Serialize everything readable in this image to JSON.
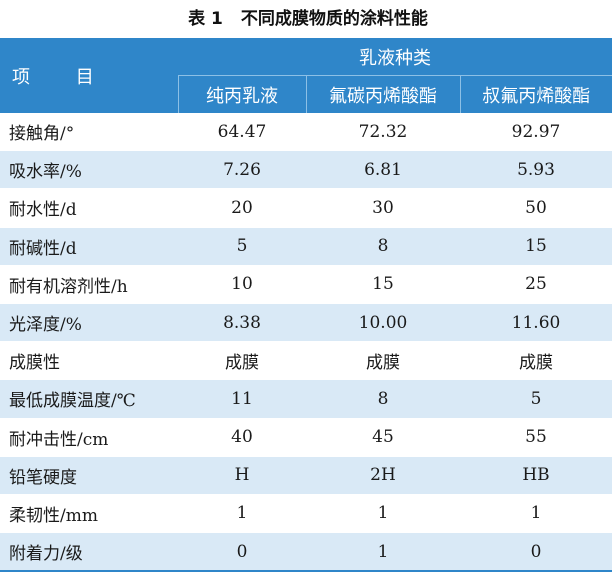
{
  "table": {
    "caption_number": "表 1",
    "caption_title": "不同成膜物质的涂料性能",
    "header": {
      "item_label": "项 目",
      "group_label": "乳液种类",
      "columns": [
        "纯丙乳液",
        "氟碳丙烯酸酯",
        "叔氟丙烯酸酯"
      ]
    },
    "rows": [
      {
        "label": "接触角/°",
        "values": [
          "64.47",
          "72.32",
          "92.97"
        ]
      },
      {
        "label": "吸水率/%",
        "values": [
          "7.26",
          "6.81",
          "5.93"
        ]
      },
      {
        "label": "耐水性/d",
        "values": [
          "20",
          "30",
          "50"
        ]
      },
      {
        "label": "耐碱性/d",
        "values": [
          "5",
          "8",
          "15"
        ]
      },
      {
        "label": "耐有机溶剂性/h",
        "values": [
          "10",
          "15",
          "25"
        ]
      },
      {
        "label": "光泽度/%",
        "values": [
          "8.38",
          "10.00",
          "11.60"
        ]
      },
      {
        "label": "成膜性",
        "values": [
          "成膜",
          "成膜",
          "成膜"
        ]
      },
      {
        "label": "最低成膜温度/℃",
        "values": [
          "11",
          "8",
          "5"
        ]
      },
      {
        "label": "耐冲击性/cm",
        "values": [
          "40",
          "45",
          "55"
        ]
      },
      {
        "label": "铅笔硬度",
        "values": [
          "H",
          "2H",
          "HB"
        ]
      },
      {
        "label": "柔韧性/mm",
        "values": [
          "1",
          "1",
          "1"
        ]
      },
      {
        "label": "附着力/级",
        "values": [
          "0",
          "1",
          "0"
        ]
      }
    ]
  }
}
